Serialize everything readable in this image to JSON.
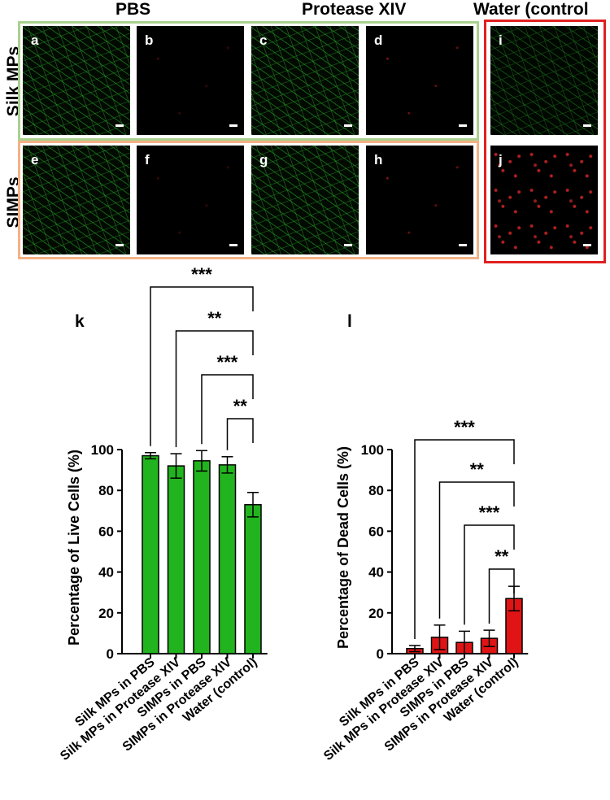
{
  "micrographs": {
    "col_titles": {
      "pbs": "PBS",
      "protease": "Protease XIV",
      "water": "Water (control"
    },
    "row_titles": {
      "silk": "Silk MPs",
      "simps": "SIMPs"
    },
    "frame_colors": {
      "silk": "#a9d18e",
      "simps": "#f4b183",
      "water": "#e02020"
    },
    "panels": [
      {
        "label": "a",
        "stain": "live"
      },
      {
        "label": "b",
        "stain": "dead"
      },
      {
        "label": "c",
        "stain": "live"
      },
      {
        "label": "d",
        "stain": "dead"
      },
      {
        "label": "e",
        "stain": "live"
      },
      {
        "label": "f",
        "stain": "dead"
      },
      {
        "label": "g",
        "stain": "live"
      },
      {
        "label": "h",
        "stain": "dead"
      },
      {
        "label": "i",
        "stain": "live"
      },
      {
        "label": "j",
        "stain": "dead"
      }
    ]
  },
  "chart_data": [
    {
      "panel_label": "k",
      "type": "bar",
      "categories": [
        "Silk MPs in PBS",
        "Silk MPs in Protease XIV",
        "SIMPs in PBS",
        "SIMPs in Protease XIV",
        "Water (control)"
      ],
      "values": [
        97,
        92,
        94.5,
        92.5,
        73
      ],
      "errors": [
        1.5,
        6,
        5,
        4,
        6
      ],
      "ylabel": "Percentage of Live Cells (%)",
      "ylim": [
        0,
        100
      ],
      "yticks": [
        0,
        20,
        40,
        60,
        80,
        100
      ],
      "bar_color": "#22b41e",
      "significance": [
        "***",
        "**",
        "***",
        "**"
      ]
    },
    {
      "panel_label": "l",
      "type": "bar",
      "categories": [
        "Silk MPs in PBS",
        "Silk MPs in Protease XIV",
        "SIMPs in PBS",
        "SIMPs in Protease XIV",
        "Water (control)"
      ],
      "values": [
        2.5,
        8,
        5.5,
        7.5,
        27
      ],
      "errors": [
        1.5,
        6,
        5.5,
        4,
        6
      ],
      "ylabel": "Percentage of Dead Cells (%)",
      "ylim": [
        0,
        100
      ],
      "yticks": [
        0,
        20,
        40,
        60,
        80,
        100
      ],
      "bar_color": "#e01414",
      "significance": [
        "***",
        "**",
        "***",
        "**"
      ]
    }
  ]
}
